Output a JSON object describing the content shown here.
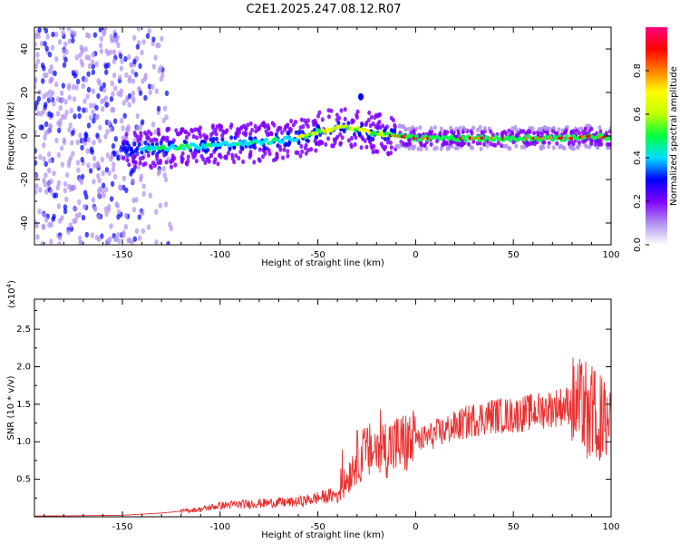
{
  "title": "C2E1.2025.247.08.12.R07",
  "chart_data": [
    {
      "type": "heatmap",
      "xlabel": "Height of straight line (km)",
      "ylabel": "Frequency (Hz)",
      "xlim": [
        -195,
        100
      ],
      "ylim": [
        -50,
        50
      ],
      "x_ticks": [
        -150,
        -100,
        -50,
        0,
        50,
        100
      ],
      "x_tick_labels": [
        "-150",
        "-100",
        "-50",
        "0",
        "50",
        "100"
      ],
      "y_ticks": [
        -40,
        -20,
        0,
        20,
        40
      ],
      "y_tick_labels": [
        "-40",
        "-20",
        "0",
        "20",
        "40"
      ],
      "colorbar": {
        "label": "Normalized spectral amplitude",
        "range": [
          0,
          1
        ],
        "ticks": [
          0.0,
          0.2,
          0.4,
          0.6,
          0.8
        ],
        "tick_labels": [
          "0.0",
          "0.2",
          "0.4",
          "0.6",
          "0.8"
        ],
        "colors": [
          "#ffffff",
          "#b090f0",
          "#8000ff",
          "#0000ff",
          "#00e0ff",
          "#00ff40",
          "#c0ff00",
          "#ffff00",
          "#ff8000",
          "#ff0000",
          "#ff0080"
        ]
      },
      "ridge": {
        "x": [
          -140,
          -120,
          -100,
          -80,
          -60,
          -50,
          -40,
          -30,
          -20,
          -10,
          0,
          20,
          40,
          60,
          80,
          90,
          100
        ],
        "y": [
          -6,
          -5,
          -4,
          -3,
          -1,
          2,
          4,
          3,
          1,
          0,
          -1,
          -1,
          -1,
          -1,
          -1,
          0,
          -1
        ]
      }
    },
    {
      "type": "line",
      "xlabel": "Height of straight line (km)",
      "ylabel": "SNR (10 * v/v)",
      "y_exponent_label": "(x10",
      "y_exponent": "4",
      "xlim": [
        -195,
        100
      ],
      "ylim": [
        0,
        2.9
      ],
      "x_ticks": [
        -150,
        -100,
        -50,
        0,
        50,
        100
      ],
      "x_tick_labels": [
        "-150",
        "-100",
        "-50",
        "0",
        "50",
        "100"
      ],
      "y_ticks": [
        0.5,
        1.0,
        1.5,
        2.0,
        2.5
      ],
      "y_tick_labels": [
        "0.5",
        "1.0",
        "1.5",
        "2.0",
        "2.5"
      ],
      "line_color": "#e83030",
      "envelope": {
        "x": [
          -195,
          -150,
          -130,
          -110,
          -100,
          -80,
          -60,
          -50,
          -40,
          -35,
          -30,
          -20,
          -10,
          0,
          10,
          20,
          30,
          40,
          50,
          60,
          70,
          80,
          90,
          95,
          100
        ],
        "y": [
          0.01,
          0.02,
          0.05,
          0.1,
          0.15,
          0.18,
          0.2,
          0.25,
          0.3,
          0.5,
          0.8,
          0.9,
          0.95,
          1.0,
          1.1,
          1.2,
          1.3,
          1.35,
          1.35,
          1.4,
          1.45,
          1.5,
          1.4,
          1.3,
          1.2
        ]
      }
    }
  ]
}
